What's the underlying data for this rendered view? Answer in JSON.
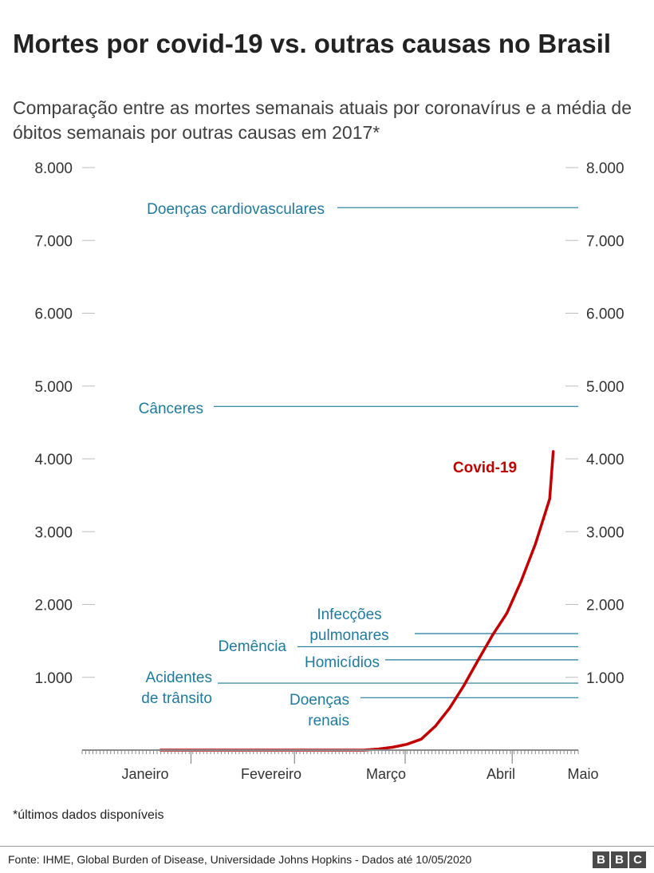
{
  "title": "Mortes por covid-19 vs. outras causas no Brasil",
  "subtitle": "Comparação entre as mortes semanais atuais por coronavírus e a média de óbitos semanais por outras causas em 2017*",
  "footnote": "*últimos dados disponíveis",
  "source": "Fonte: IHME, Global Burden of Disease, Universidade Johns Hopkins - Dados até 10/05/2020",
  "brand": [
    "B",
    "B",
    "C"
  ],
  "colors": {
    "reference": "#1f7a9c",
    "covid": "#c00000",
    "axis": "#8a8a8a",
    "tick_text": "#333333"
  },
  "chart_data": {
    "type": "line",
    "title": "Mortes por covid-19 vs. outras causas no Brasil",
    "xlabel": "",
    "ylabel": "",
    "ylim": [
      0,
      8000
    ],
    "yticks": [
      1000,
      2000,
      3000,
      4000,
      5000,
      6000,
      7000,
      8000
    ],
    "ytick_labels": [
      "1.000",
      "2.000",
      "3.000",
      "4.000",
      "5.000",
      "6.000",
      "7.000",
      "8.000"
    ],
    "x_unit": "day of year 2020",
    "xlim": [
      1,
      140
    ],
    "months": [
      {
        "label": "Janeiro",
        "start": 1,
        "end": 31
      },
      {
        "label": "Fevereiro",
        "start": 32,
        "end": 60
      },
      {
        "label": "Março",
        "start": 61,
        "end": 91
      },
      {
        "label": "Abril",
        "start": 92,
        "end": 121
      },
      {
        "label": "Maio",
        "start": 122,
        "end": 140
      }
    ],
    "covid": {
      "name": "Covid-19",
      "x": [
        23,
        40,
        60,
        80,
        84,
        88,
        92,
        96,
        100,
        104,
        108,
        112,
        116,
        120,
        124,
        128,
        132
      ],
      "y": [
        0,
        0,
        0,
        0,
        15,
        40,
        80,
        150,
        330,
        580,
        890,
        1240,
        1580,
        1880,
        2320,
        2830,
        3450
      ]
    },
    "covid_end": {
      "x": 133,
      "y": 4100
    },
    "reference_lines": [
      {
        "name": "Doenças cardiovasculares",
        "value": 7450
      },
      {
        "name": "Cânceres",
        "value": 4720
      },
      {
        "name": "Infecções pulmonares",
        "value": 1600
      },
      {
        "name": "Demência",
        "value": 1420
      },
      {
        "name": "Homicídios",
        "value": 1240
      },
      {
        "name": "Acidentes de trânsito",
        "value": 920
      },
      {
        "name": "Doenças renais",
        "value": 720
      }
    ]
  }
}
